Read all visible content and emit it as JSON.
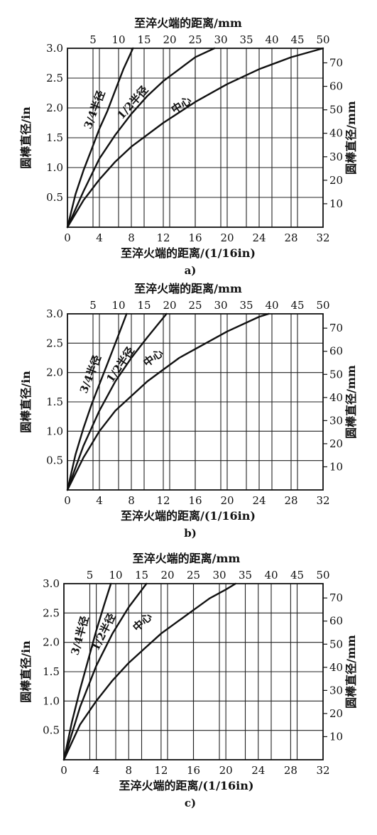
{
  "chart_data": [
    {
      "type": "line",
      "panel_label": "a)",
      "xlabel": "至淬火端的距离/(1/16in)",
      "x2label": "至淬火端的距离/mm",
      "ylabel": "圆棒直径/in",
      "y2label": "圆棒直径/mm",
      "xlim": [
        0,
        32
      ],
      "x2lim": [
        0,
        50
      ],
      "ylim": [
        0,
        3.0
      ],
      "y2lim": [
        0,
        76.2
      ],
      "x_ticks": [
        "0",
        "4",
        "8",
        "12",
        "16",
        "20",
        "24",
        "28",
        "32"
      ],
      "x2_ticks": [
        "5",
        "10",
        "15",
        "20",
        "25",
        "30",
        "35",
        "40",
        "45",
        "50"
      ],
      "y_ticks": [
        "0.5",
        "1.0",
        "1.5",
        "2.0",
        "2.5",
        "3.0"
      ],
      "y2_ticks": [
        "10",
        "20",
        "30",
        "40",
        "50",
        "60",
        "70"
      ],
      "grid": true,
      "series": [
        {
          "name": "3/4半径",
          "x": [
            0,
            1,
            2,
            3,
            4,
            5,
            6,
            7,
            8.2
          ],
          "y": [
            0,
            0.55,
            0.95,
            1.3,
            1.65,
            1.95,
            2.3,
            2.65,
            3.0
          ]
        },
        {
          "name": "1/2半径",
          "x": [
            0,
            2,
            4,
            6,
            8,
            10,
            12,
            14,
            16,
            18.4
          ],
          "y": [
            0,
            0.6,
            1.15,
            1.55,
            1.9,
            2.2,
            2.45,
            2.65,
            2.85,
            3.0
          ]
        },
        {
          "name": "中心",
          "x": [
            0,
            2,
            4,
            6,
            8,
            12,
            16,
            20,
            24,
            28,
            32
          ],
          "y": [
            0,
            0.45,
            0.8,
            1.1,
            1.35,
            1.75,
            2.1,
            2.4,
            2.65,
            2.85,
            3.0
          ]
        }
      ],
      "series_label_positions": {
        "3/4半径": [
          3.8,
          1.95
        ],
        "1/2半径": [
          8.5,
          2.05
        ],
        "中心": [
          14.5,
          2.0
        ]
      }
    },
    {
      "type": "line",
      "panel_label": "b)",
      "xlabel": "至淬火端的距离/(1/16in)",
      "x2label": "至淬火端的距离/mm",
      "ylabel": "圆棒直径/in",
      "y2label": "圆棒直径/mm",
      "xlim": [
        0,
        32
      ],
      "x2lim": [
        0,
        50
      ],
      "ylim": [
        0,
        3.0
      ],
      "y2lim": [
        0,
        76.2
      ],
      "x_ticks": [
        "0",
        "4",
        "8",
        "12",
        "16",
        "20",
        "24",
        "28",
        "32"
      ],
      "x2_ticks": [
        "5",
        "10",
        "15",
        "20",
        "25",
        "30",
        "35",
        "40",
        "45",
        "50"
      ],
      "y_ticks": [
        "0.5",
        "1.0",
        "1.5",
        "2.0",
        "2.5",
        "3.0"
      ],
      "y2_ticks": [
        "10",
        "20",
        "30",
        "40",
        "50",
        "60",
        "70"
      ],
      "grid": true,
      "series": [
        {
          "name": "3/4半径",
          "x": [
            0,
            1,
            2,
            3,
            4,
            5,
            6,
            7.4
          ],
          "y": [
            0,
            0.6,
            1.05,
            1.45,
            1.8,
            2.15,
            2.5,
            3.0
          ]
        },
        {
          "name": "1/2半径",
          "x": [
            0,
            2,
            4,
            6,
            8,
            10,
            12.4
          ],
          "y": [
            0,
            0.75,
            1.35,
            1.85,
            2.25,
            2.6,
            3.0
          ]
        },
        {
          "name": "中心",
          "x": [
            0,
            2,
            4,
            6,
            8,
            10,
            12,
            14,
            16,
            20,
            24,
            25.2
          ],
          "y": [
            0,
            0.55,
            1.0,
            1.35,
            1.6,
            1.85,
            2.05,
            2.25,
            2.4,
            2.7,
            2.95,
            3.0
          ]
        }
      ],
      "series_label_positions": {
        "3/4半径": [
          3.3,
          1.95
        ],
        "1/2半径": [
          7.0,
          2.1
        ],
        "中心": [
          11.0,
          2.2
        ]
      }
    },
    {
      "type": "line",
      "panel_label": "c)",
      "xlabel": "至淬火端的距离/(1/16in)",
      "x2label": "至淬火端的距离/mm",
      "ylabel": "圆棒直径/in",
      "y2label": "圆棒直径/mm",
      "xlim": [
        0,
        32
      ],
      "x2lim": [
        0,
        50
      ],
      "ylim": [
        0,
        3.0
      ],
      "y2lim": [
        0,
        76.2
      ],
      "x_ticks": [
        "0",
        "4",
        "8",
        "12",
        "16",
        "20",
        "24",
        "28",
        "32"
      ],
      "x2_ticks": [
        "5",
        "10",
        "15",
        "20",
        "25",
        "30",
        "35",
        "40",
        "45",
        "50"
      ],
      "y_ticks": [
        "0.5",
        "1.0",
        "1.5",
        "2.0",
        "2.5",
        "3.0"
      ],
      "y2_ticks": [
        "10",
        "20",
        "30",
        "40",
        "50",
        "60",
        "70"
      ],
      "grid": true,
      "series": [
        {
          "name": "3/4半径",
          "x": [
            0,
            1,
            2,
            3,
            4,
            5,
            5.8
          ],
          "y": [
            0,
            0.65,
            1.2,
            1.7,
            2.2,
            2.65,
            3.0
          ]
        },
        {
          "name": "1/2半径",
          "x": [
            0,
            2,
            4,
            6,
            8,
            10.2
          ],
          "y": [
            0,
            0.9,
            1.6,
            2.15,
            2.6,
            3.0
          ]
        },
        {
          "name": "中心",
          "x": [
            0,
            2,
            4,
            6,
            8,
            10,
            12,
            14,
            16,
            18,
            20,
            21.2
          ],
          "y": [
            0,
            0.6,
            1.0,
            1.35,
            1.65,
            1.9,
            2.15,
            2.35,
            2.55,
            2.75,
            2.9,
            3.0
          ]
        }
      ],
      "series_label_positions": {
        "3/4半径": [
          2.4,
          2.1
        ],
        "1/2半径": [
          5.3,
          2.15
        ],
        "中心": [
          10.0,
          2.3
        ]
      }
    }
  ]
}
